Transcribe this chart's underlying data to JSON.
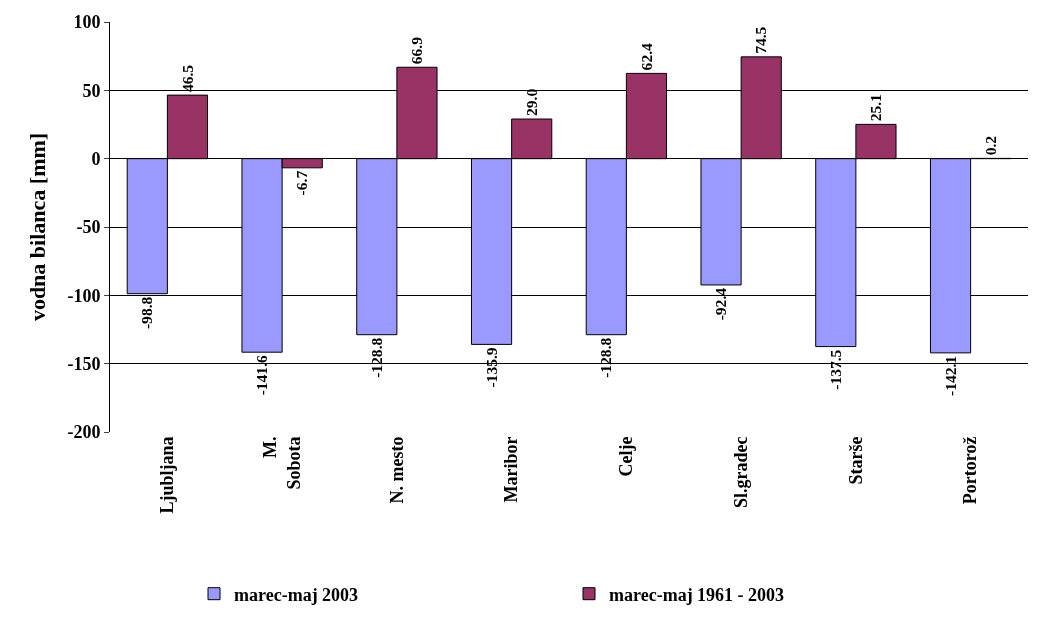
{
  "chart_data": {
    "type": "bar",
    "ylabel": "vodna bilanca [mm]",
    "categories": [
      "Ljubljana",
      "M.\nSobota",
      "N. mesto",
      "Maribor",
      "Celje",
      "Sl.gradec",
      "Starše",
      "Portorož"
    ],
    "series": [
      {
        "name": "marec-maj 2003",
        "color": "#9999ff",
        "values": [
          -98.8,
          -141.6,
          -128.8,
          -135.9,
          -128.8,
          -92.4,
          -137.5,
          -142.1
        ],
        "value_labels": [
          "-98.8",
          "-141.6",
          "-128.8",
          "-135.9",
          "-128.8",
          "-92.4",
          "-137.5",
          "-142.1"
        ]
      },
      {
        "name": "marec-maj 1961 - 2003",
        "color": "#993366",
        "values": [
          46.5,
          -6.7,
          66.9,
          29.0,
          62.4,
          74.5,
          25.1,
          0.2
        ],
        "value_labels": [
          "46.5",
          "-6.7",
          "66.9",
          "29.0",
          "62.4",
          "74.5",
          "25.1",
          "0.2"
        ]
      }
    ],
    "ylim": [
      -200,
      100
    ],
    "yticks": [
      -200,
      -150,
      -100,
      -50,
      0,
      50,
      100
    ],
    "grid": "y",
    "legend": "bottom"
  }
}
